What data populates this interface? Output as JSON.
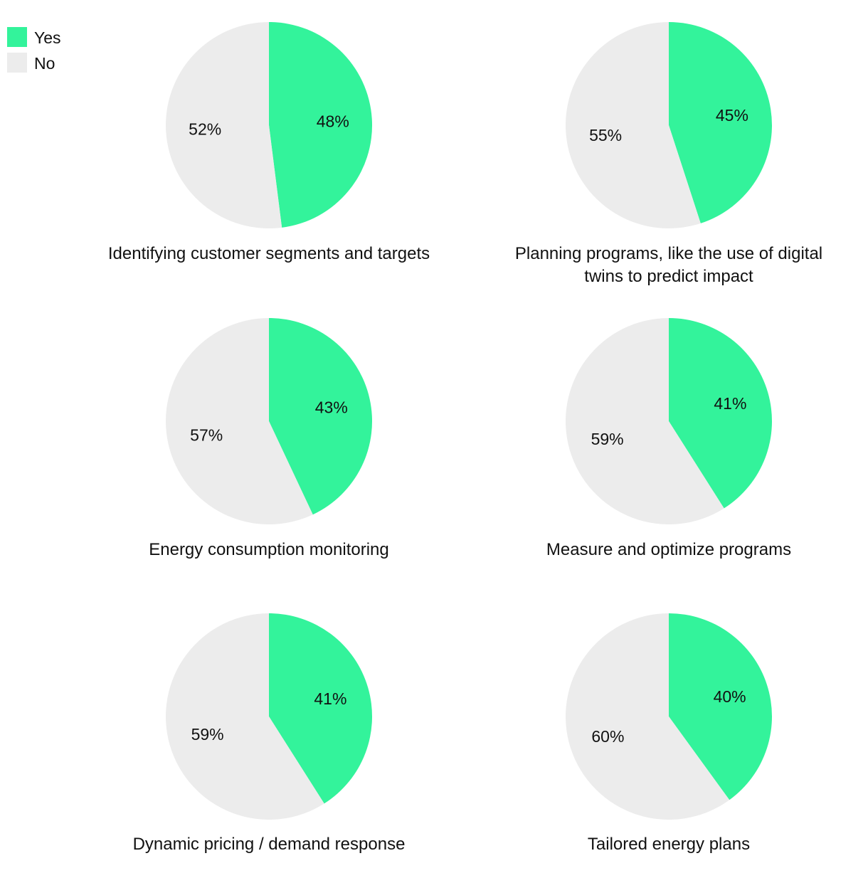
{
  "legend": {
    "items": [
      {
        "label": "Yes",
        "color": "#33f39b"
      },
      {
        "label": "No",
        "color": "#ececec"
      }
    ]
  },
  "chart_data": [
    {
      "type": "pie",
      "title": [
        "Identifying customer segments and targets"
      ],
      "categories": [
        "Yes",
        "No"
      ],
      "values": [
        48,
        52
      ],
      "labels": [
        "48%",
        "52%"
      ],
      "colors": [
        "#33f39b",
        "#ececec"
      ]
    },
    {
      "type": "pie",
      "title": [
        "Planning programs, like the use of digital",
        "twins to predict impact"
      ],
      "categories": [
        "Yes",
        "No"
      ],
      "values": [
        45,
        55
      ],
      "labels": [
        "45%",
        "55%"
      ],
      "colors": [
        "#33f39b",
        "#ececec"
      ]
    },
    {
      "type": "pie",
      "title": [
        "Energy consumption monitoring"
      ],
      "categories": [
        "Yes",
        "No"
      ],
      "values": [
        43,
        57
      ],
      "labels": [
        "43%",
        "57%"
      ],
      "colors": [
        "#33f39b",
        "#ececec"
      ]
    },
    {
      "type": "pie",
      "title": [
        "Measure and optimize programs"
      ],
      "categories": [
        "Yes",
        "No"
      ],
      "values": [
        41,
        59
      ],
      "labels": [
        "41%",
        "59%"
      ],
      "colors": [
        "#33f39b",
        "#ececec"
      ]
    },
    {
      "type": "pie",
      "title": [
        "Dynamic pricing / demand response"
      ],
      "categories": [
        "Yes",
        "No"
      ],
      "values": [
        41,
        59
      ],
      "labels": [
        "41%",
        "59%"
      ],
      "colors": [
        "#33f39b",
        "#ececec"
      ]
    },
    {
      "type": "pie",
      "title": [
        "Tailored energy plans"
      ],
      "categories": [
        "Yes",
        "No"
      ],
      "values": [
        40,
        60
      ],
      "labels": [
        "40%",
        "60%"
      ],
      "colors": [
        "#33f39b",
        "#ececec"
      ]
    }
  ]
}
